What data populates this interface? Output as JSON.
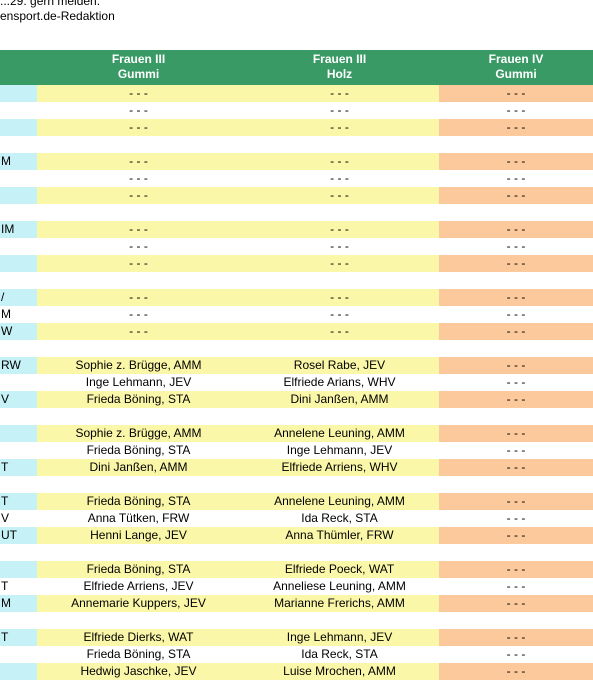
{
  "top_text": {
    "line1": "...29.  gern melden.",
    "line2": "ensport.de-Redaktion"
  },
  "columns": [
    {
      "line1": "",
      "line2": ""
    },
    {
      "line1": "Frauen III",
      "line2": "Gummi"
    },
    {
      "line1": "Frauen III",
      "line2": "Holz"
    },
    {
      "line1": "Frauen IV",
      "line2": "Gummi"
    }
  ],
  "rows": [
    {
      "type": "hl",
      "cells": [
        "",
        "- - -",
        "- - -",
        "- - -"
      ]
    },
    {
      "type": "plain",
      "cells": [
        "",
        "- - -",
        "- - -",
        "- - -"
      ]
    },
    {
      "type": "hl",
      "cells": [
        "",
        "- - -",
        "- - -",
        "- - -"
      ]
    },
    {
      "type": "gap"
    },
    {
      "type": "hl",
      "cells": [
        "M",
        "- - -",
        "- - -",
        "- - -"
      ]
    },
    {
      "type": "plain",
      "cells": [
        "",
        "- - -",
        "- - -",
        "- - -"
      ]
    },
    {
      "type": "hl",
      "cells": [
        "",
        "- - -",
        "- - -",
        "- - -"
      ]
    },
    {
      "type": "gap"
    },
    {
      "type": "hl",
      "cells": [
        "IM",
        "- - -",
        "- - -",
        "- - -"
      ]
    },
    {
      "type": "plain",
      "cells": [
        "",
        "- - -",
        "- - -",
        "- - -"
      ]
    },
    {
      "type": "hl",
      "cells": [
        "",
        "- - -",
        "- - -",
        "- - -"
      ]
    },
    {
      "type": "gap"
    },
    {
      "type": "hl",
      "cells": [
        "/",
        "- - -",
        "- - -",
        "- - -"
      ]
    },
    {
      "type": "plain",
      "cells": [
        "M",
        "- - -",
        "- - -",
        "- - -"
      ]
    },
    {
      "type": "hl",
      "cells": [
        "W",
        "- - -",
        "- - -",
        "- - -"
      ]
    },
    {
      "type": "gap"
    },
    {
      "type": "hl",
      "cells": [
        "RW",
        "Sophie z. Brügge, AMM",
        "Rosel Rabe, JEV",
        "- - -"
      ]
    },
    {
      "type": "plain",
      "cells": [
        "",
        "Inge Lehmann, JEV",
        "Elfriede Arians, WHV",
        "- - -"
      ]
    },
    {
      "type": "hl",
      "cells": [
        "V",
        "Frieda Böning, STA",
        "Dini Janßen, AMM",
        "- - -"
      ]
    },
    {
      "type": "gap"
    },
    {
      "type": "hl",
      "cells": [
        "",
        "Sophie z. Brügge, AMM",
        "Annelene Leuning, AMM",
        "- - -"
      ]
    },
    {
      "type": "plain",
      "cells": [
        "",
        "Frieda Böning, STA",
        "Inge Lehmann, JEV",
        "- - -"
      ]
    },
    {
      "type": "hl",
      "cells": [
        "T",
        "Dini Janßen, AMM",
        "Elfriede Arriens, WHV",
        "- - -"
      ]
    },
    {
      "type": "gap"
    },
    {
      "type": "hl",
      "cells": [
        "T",
        "Frieda Böning, STA",
        "Annelene Leuning, AMM",
        "- - -"
      ]
    },
    {
      "type": "plain",
      "cells": [
        "V",
        "Anna Tütken, FRW",
        "Ida Reck, STA",
        "- - -"
      ]
    },
    {
      "type": "hl",
      "cells": [
        "UT",
        "Henni Lange, JEV",
        "Anna Thümler, FRW",
        "- - -"
      ]
    },
    {
      "type": "gap"
    },
    {
      "type": "hl",
      "cells": [
        "",
        "Frieda Böning, STA",
        "Elfriede Poeck, WAT",
        "- - -"
      ]
    },
    {
      "type": "plain",
      "cells": [
        "T",
        "Elfriede Arriens, JEV",
        "Anneliese Leuning, AMM",
        "- - -"
      ]
    },
    {
      "type": "hl",
      "cells": [
        "M",
        "Annemarie Kuppers, JEV",
        "Marianne Frerichs, AMM",
        "- - -"
      ]
    },
    {
      "type": "gap"
    },
    {
      "type": "hl",
      "cells": [
        "T",
        "Elfriede Dierks, WAT",
        "Inge Lehmann, JEV",
        "- - -"
      ]
    },
    {
      "type": "plain",
      "cells": [
        "",
        "Frieda Böning, STA",
        "Ida Reck, STA",
        "- - -"
      ]
    },
    {
      "type": "hl",
      "cells": [
        "",
        "Hedwig Jaschke, JEV",
        "Luise Mrochen, AMM",
        "- - -"
      ]
    }
  ],
  "colors": {
    "header": "#3a9a66",
    "cyan": "#c6f1f7",
    "yellow": "#fbf7a8",
    "orange": "#fcc99c"
  }
}
